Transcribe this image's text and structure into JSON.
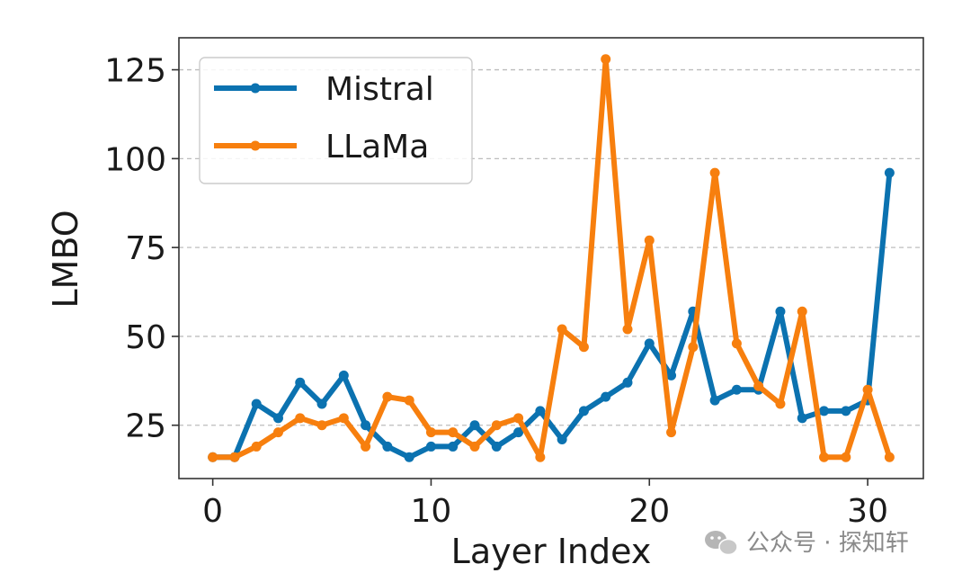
{
  "chart_data": {
    "type": "line",
    "title": "",
    "xlabel": "Layer Index",
    "ylabel": "LMBO",
    "x": [
      0,
      1,
      2,
      3,
      4,
      5,
      6,
      7,
      8,
      9,
      10,
      11,
      12,
      13,
      14,
      15,
      16,
      17,
      18,
      19,
      20,
      21,
      22,
      23,
      24,
      25,
      26,
      27,
      28,
      29,
      30,
      31
    ],
    "xlim": [
      -1.55,
      32.55
    ],
    "ylim": [
      10,
      134
    ],
    "xticks": [
      0,
      10,
      20,
      30
    ],
    "yticks": [
      25,
      50,
      75,
      100,
      125
    ],
    "grid": {
      "y": true,
      "x": false,
      "style": "dashed"
    },
    "legend_position": "top-left",
    "series": [
      {
        "name": "Mistral",
        "color": "#0b72b0",
        "values": [
          16,
          16,
          31,
          27,
          37,
          31,
          39,
          25,
          19,
          16,
          19,
          19,
          25,
          19,
          23,
          29,
          21,
          29,
          33,
          37,
          48,
          39,
          57,
          32,
          35,
          35,
          57,
          27,
          29,
          29,
          32,
          96
        ]
      },
      {
        "name": "LLaMa",
        "color": "#f77f0e",
        "values": [
          16,
          16,
          19,
          23,
          27,
          25,
          27,
          19,
          33,
          32,
          23,
          23,
          19,
          25,
          27,
          16,
          52,
          47,
          128,
          52,
          77,
          23,
          47,
          96,
          48,
          36,
          31,
          57,
          16,
          16,
          35,
          16
        ]
      }
    ]
  },
  "watermark": {
    "icon": "wechat-icon",
    "text": "公众号 · 探知轩"
  }
}
